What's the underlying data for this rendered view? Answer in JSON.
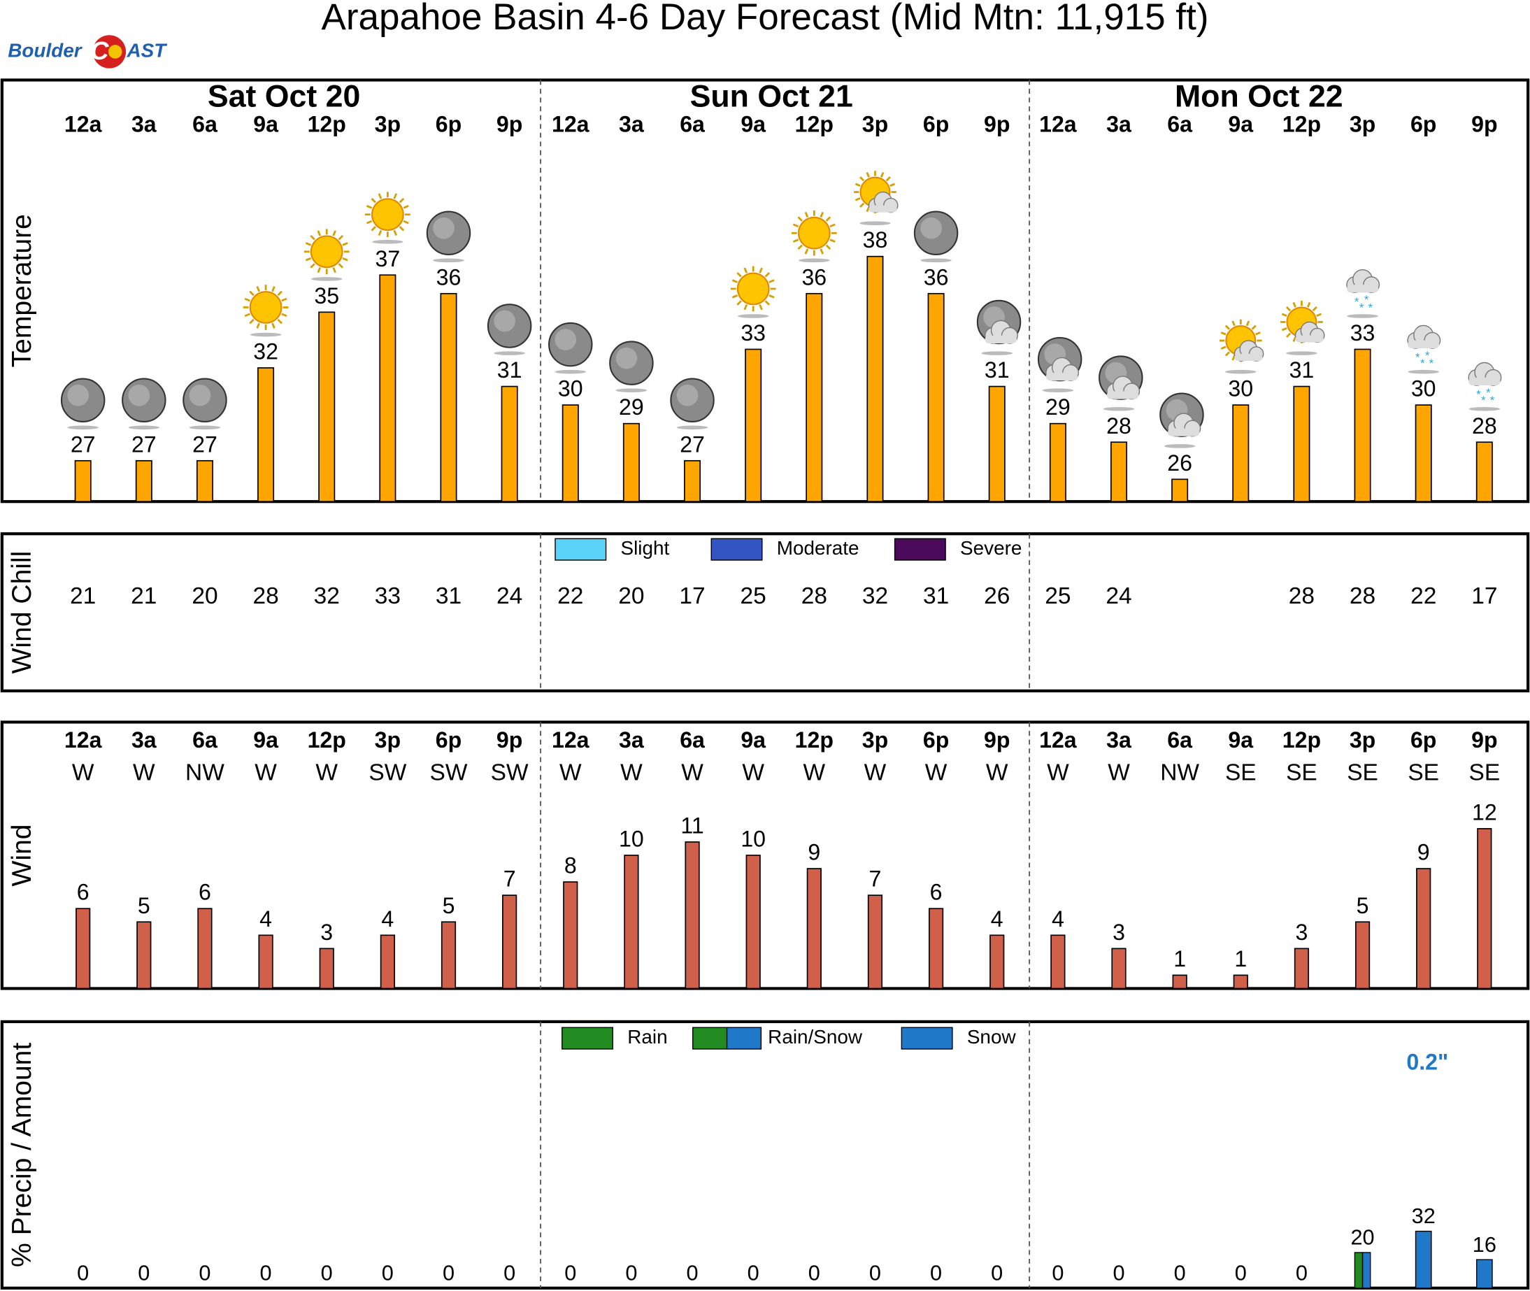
{
  "title": "Arapahoe Basin 4-6 Day Forecast (Mid Mtn: 11,915 ft)",
  "logo": {
    "left": "Boulder",
    "mark": "C",
    "right": "AST"
  },
  "days": [
    "Sat  Oct  20",
    "Sun  Oct  21",
    "Mon  Oct  22"
  ],
  "hours": [
    "12a",
    "3a",
    "6a",
    "9a",
    "12p",
    "3p",
    "6p",
    "9p",
    "12a",
    "3a",
    "6a",
    "9a",
    "12p",
    "3p",
    "6p",
    "9p",
    "12a",
    "3a",
    "6a",
    "9a",
    "12p",
    "3p",
    "6p",
    "9p"
  ],
  "chart_data": [
    {
      "type": "bar",
      "name": "temperature",
      "ylabel": "Temperature",
      "color": "#ffa500",
      "values": [
        27,
        27,
        27,
        32,
        35,
        37,
        36,
        31,
        30,
        29,
        27,
        33,
        36,
        38,
        36,
        31,
        29,
        28,
        26,
        30,
        31,
        33,
        30,
        28
      ],
      "ylim": [
        24.8,
        47.5
      ]
    },
    {
      "type": "table",
      "name": "wind-chill",
      "ylabel": "Wind Chill",
      "values": [
        21,
        21,
        20,
        28,
        32,
        33,
        31,
        24,
        22,
        20,
        17,
        25,
        28,
        32,
        31,
        26,
        25,
        24,
        null,
        null,
        28,
        28,
        22,
        17
      ],
      "legend": [
        {
          "name": "Slight",
          "color": "#5bd3f8"
        },
        {
          "name": "Moderate",
          "color": "#3355c4"
        },
        {
          "name": "Severe",
          "color": "#4b0a5c"
        }
      ]
    },
    {
      "type": "bar",
      "name": "wind",
      "ylabel": "Wind",
      "color": "#d0604a",
      "directions": [
        "W",
        "W",
        "NW",
        "W",
        "W",
        "SW",
        "SW",
        "SW",
        "W",
        "W",
        "W",
        "W",
        "W",
        "W",
        "W",
        "W",
        "W",
        "W",
        "NW",
        "SE",
        "SE",
        "SE",
        "SE",
        "SE"
      ],
      "values": [
        6,
        5,
        6,
        4,
        3,
        4,
        5,
        7,
        8,
        10,
        11,
        10,
        9,
        7,
        6,
        4,
        4,
        3,
        1,
        1,
        3,
        5,
        9,
        12
      ],
      "ylim": [
        0,
        20
      ]
    },
    {
      "type": "precip",
      "name": "precip",
      "ylabel": "% Precip / Amount",
      "values": [
        0,
        0,
        0,
        0,
        0,
        0,
        0,
        0,
        0,
        0,
        0,
        0,
        0,
        0,
        0,
        0,
        0,
        0,
        0,
        0,
        0,
        20,
        32,
        16
      ],
      "kinds": [
        null,
        null,
        null,
        null,
        null,
        null,
        null,
        null,
        null,
        null,
        null,
        null,
        null,
        null,
        null,
        null,
        null,
        null,
        null,
        null,
        null,
        "Rain/Snow",
        "Snow",
        "Snow"
      ],
      "amounts": [
        null,
        null,
        null,
        null,
        null,
        null,
        null,
        null,
        null,
        null,
        null,
        null,
        null,
        null,
        null,
        null,
        null,
        null,
        null,
        null,
        null,
        null,
        "0.2\"",
        null
      ],
      "amount_color": "#1f78c8",
      "legend": [
        {
          "name": "Rain",
          "colors": [
            "#228b22"
          ]
        },
        {
          "name": "Rain/Snow",
          "colors": [
            "#228b22",
            "#1f78c8"
          ]
        },
        {
          "name": "Snow",
          "colors": [
            "#1f78c8"
          ]
        }
      ],
      "ylim": [
        0,
        150
      ]
    }
  ]
}
